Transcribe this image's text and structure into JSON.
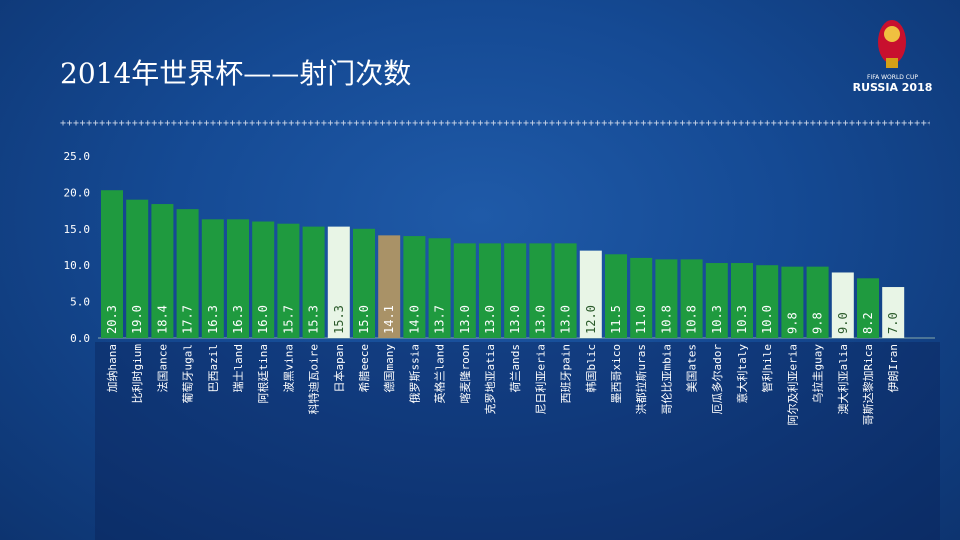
{
  "title": "2014年世界杯——射门次数",
  "logo": {
    "line1": "FIFA WORLD CUP",
    "line2": "RUSSIA 2018"
  },
  "colors": {
    "default": "#1f9a3f",
    "highlight": "#e8f5e6",
    "germany": "#a99267"
  },
  "chart_data": {
    "type": "bar",
    "title": "2014年世界杯——射门次数",
    "ylim": [
      0,
      25
    ],
    "yticks": [
      "0.0",
      "5.0",
      "10.0",
      "15.0",
      "20.0",
      "25.0"
    ],
    "categories": [
      "加纳hana",
      "比利时gium",
      "法国ance",
      "葡萄牙ugal",
      "巴西azil",
      "瑞士land",
      "阿根廷tina",
      "波黑vina",
      "科特迪瓦oire",
      "日本apan",
      "希腊eece",
      "德国many",
      "俄罗斯ssia",
      "英格兰land",
      "喀麦隆roon",
      "克罗地亚atia",
      "荷兰ands",
      "尼日利亚eria",
      "西班牙pain",
      "韩国blic",
      "墨西哥xico",
      "洪都拉斯uras",
      "哥伦比亚mbia",
      "美国ates",
      "厄瓜多尔ador",
      "意大利taly",
      "智利hile",
      "阿尔及利亚eria",
      "乌拉圭guay",
      "澳大利亚alia",
      "哥斯达黎加Rica",
      "伊朗Iran"
    ],
    "values": [
      20.3,
      19.0,
      18.4,
      17.7,
      16.3,
      16.3,
      16.0,
      15.7,
      15.3,
      15.3,
      15.0,
      14.1,
      14.0,
      13.7,
      13.0,
      13.0,
      13.0,
      13.0,
      13.0,
      12.0,
      11.5,
      11.0,
      10.8,
      10.8,
      10.3,
      10.3,
      10.0,
      9.8,
      9.8,
      9.0,
      8.2,
      7.0
    ],
    "labels": [
      "20.3",
      "19.0",
      "18.4",
      "17.7",
      "16.3",
      "16.3",
      "16.0",
      "15.7",
      "15.3",
      "15.3",
      "15.0",
      "14.1",
      "14.0",
      "13.7",
      "13.0",
      "13.0",
      "13.0",
      "13.0",
      "13.0",
      "12.0",
      "11.5",
      "11.0",
      "10.8",
      "10.8",
      "10.3",
      "10.3",
      "10.0",
      "9.8",
      "9.8",
      "9.0",
      "8.2",
      "7.0"
    ],
    "highlight": [
      "日本apan",
      "韩国blic",
      "澳大利亚alia",
      "伊朗Iran"
    ],
    "special": [
      "德国many"
    ]
  }
}
